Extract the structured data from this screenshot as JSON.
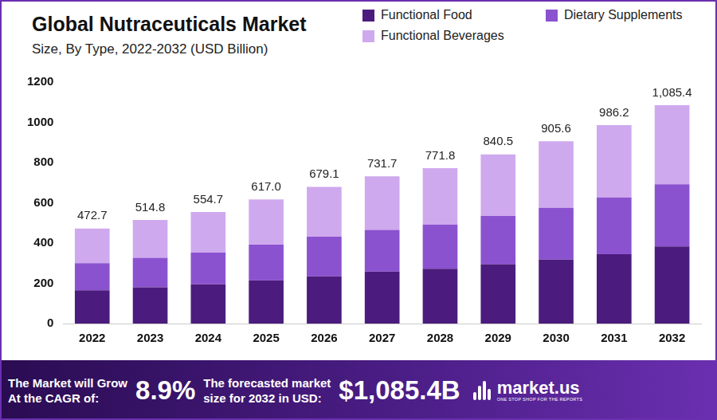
{
  "chart_data": {
    "type": "bar",
    "title": "Global Nutraceuticals Market",
    "subtitle": "Size, By Type, 2022-2032 (USD Billion)",
    "categories": [
      "2022",
      "2023",
      "2024",
      "2025",
      "2026",
      "2027",
      "2028",
      "2029",
      "2030",
      "2031",
      "2032"
    ],
    "series": [
      {
        "name": "Functional Food",
        "color": "#4b1c7d",
        "values": [
          165,
          180,
          195,
          215,
          235,
          258,
          272,
          295,
          318,
          345,
          383
        ]
      },
      {
        "name": "Dietary Supplements",
        "color": "#8b52d0",
        "values": [
          135,
          147,
          157,
          177,
          197,
          207,
          220,
          240,
          257,
          282,
          309
        ]
      },
      {
        "name": "Functional Beverages",
        "color": "#cfa9ee",
        "values": [
          172.7,
          187.8,
          202.7,
          225.0,
          247.1,
          266.7,
          279.8,
          305.5,
          330.6,
          359.2,
          393.4
        ]
      }
    ],
    "totals": [
      472.7,
      514.8,
      554.7,
      617.0,
      679.1,
      731.7,
      771.8,
      840.5,
      905.6,
      986.2,
      1085.4
    ],
    "total_labels": [
      "472.7",
      "514.8",
      "554.7",
      "617.0",
      "679.1",
      "731.7",
      "771.8",
      "840.5",
      "905.6",
      "986.2",
      "1,085.4"
    ],
    "ylim": [
      0,
      1200
    ],
    "yticks": [
      0,
      200,
      400,
      600,
      800,
      1000,
      1200
    ],
    "stacked": true,
    "grid": false,
    "legend": "top-right",
    "footer": {
      "cagr_label": [
        "The Market will Grow",
        "At the CAGR of:"
      ],
      "cagr": "8.9%",
      "forecast_label": [
        "The forecasted market",
        "size for 2032 in USD:"
      ],
      "forecast": "$1,085.4B",
      "brand": "market.us",
      "brand_tagline": "ONE STOP SHOP FOR THE REPORTS"
    }
  }
}
